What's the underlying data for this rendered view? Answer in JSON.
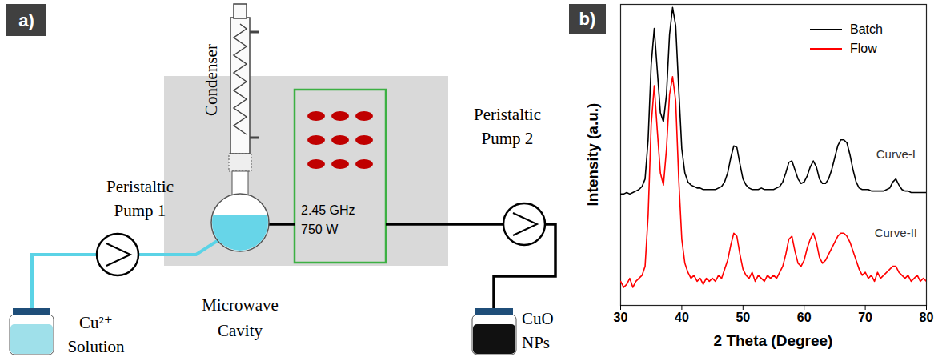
{
  "diagram": {
    "panel_label": "a)",
    "condenser": "Condenser",
    "pump_1": [
      "Peristaltic",
      "Pump 1"
    ],
    "pump_2": [
      "Peristaltic",
      "Pump 2"
    ],
    "source": [
      "Cu²⁺",
      "Solution"
    ],
    "cavity": [
      "Microwave",
      "Cavity"
    ],
    "microwave": [
      "2.45 GHz",
      "750 W"
    ],
    "product": [
      "CuO",
      "NPs"
    ]
  },
  "chart_data": {
    "type": "line",
    "panel_label": "b)",
    "xlabel": "2 Theta (Degree)",
    "ylabel": "Intensity (a.u.)",
    "x": [
      30,
      30.5,
      31,
      31.5,
      32,
      32.5,
      33,
      33.5,
      34,
      34.5,
      35,
      35.5,
      36,
      36.5,
      37,
      37.5,
      38,
      38.5,
      39,
      39.5,
      40,
      40.5,
      41,
      41.5,
      42,
      42.5,
      43,
      43.5,
      44,
      44.5,
      45,
      45.5,
      46,
      46.5,
      47,
      47.5,
      48,
      48.5,
      49,
      49.5,
      50,
      50.5,
      51,
      51.5,
      52,
      52.5,
      53,
      53.5,
      54,
      54.5,
      55,
      55.5,
      56,
      56.5,
      57,
      57.5,
      58,
      58.5,
      59,
      59.5,
      60,
      60.5,
      61,
      61.5,
      62,
      62.5,
      63,
      63.5,
      64,
      64.5,
      65,
      65.5,
      66,
      66.5,
      67,
      67.5,
      68,
      68.5,
      69,
      69.5,
      70,
      70.5,
      71,
      71.5,
      72,
      72.5,
      73,
      73.5,
      74,
      74.5,
      75,
      75.5,
      76,
      76.5,
      77,
      77.5,
      78,
      78.5,
      79,
      79.5,
      80
    ],
    "series": [
      {
        "name": "Batch",
        "color": "#000000",
        "values": [
          37,
          37,
          37.5,
          37,
          37.5,
          38,
          38.5,
          39.5,
          42,
          55,
          80,
          92,
          78,
          64,
          61,
          70,
          90,
          99,
          93,
          72,
          52,
          44,
          41,
          40,
          39.5,
          39,
          39,
          38.5,
          38.5,
          38.5,
          38.5,
          38.5,
          39,
          39.5,
          41,
          44,
          49,
          53,
          52.5,
          47,
          42,
          40,
          39,
          38.5,
          38.5,
          38.5,
          39,
          38.5,
          38.5,
          38.5,
          38.5,
          39,
          39.5,
          41,
          44,
          47.5,
          48,
          45,
          42,
          40.5,
          41,
          43,
          46,
          48,
          46,
          42,
          40.5,
          40.5,
          42,
          45,
          49,
          53,
          55,
          55,
          54,
          50,
          45,
          41,
          39,
          38.5,
          38.5,
          38.5,
          38,
          38,
          38,
          38,
          38,
          38.5,
          39,
          41,
          42,
          40,
          38.5,
          38,
          38,
          37.5,
          37.5,
          37.5,
          37.5,
          37.5,
          37.5
        ]
      },
      {
        "name": "Flow",
        "color": "#ff0000",
        "values": [
          8,
          6,
          7,
          9,
          6,
          8,
          9,
          10,
          13,
          30,
          60,
          73,
          58,
          44,
          40,
          52,
          70,
          76,
          68,
          42,
          22,
          14,
          11,
          9,
          10,
          8,
          9,
          7,
          9,
          8,
          9,
          8,
          10,
          9,
          12,
          15,
          20,
          24,
          23,
          17,
          12,
          10,
          9,
          11,
          8,
          10,
          9,
          8,
          10,
          9,
          10,
          9,
          11,
          13,
          17,
          22,
          23,
          18,
          14,
          13,
          15,
          19,
          22,
          24,
          21,
          16,
          14,
          15,
          17,
          19,
          21,
          23,
          24,
          24,
          23,
          21,
          18,
          15,
          12,
          10,
          11,
          9,
          10,
          8,
          11,
          9,
          10,
          11,
          12,
          13,
          13,
          11,
          10,
          9,
          10,
          8,
          9,
          10,
          8,
          9,
          8
        ]
      }
    ],
    "xlim": [
      30,
      80
    ],
    "ylim": [
      0,
      100
    ],
    "xticks": [
      30,
      40,
      50,
      60,
      70,
      80
    ],
    "yticks": [],
    "tick_labels": "x",
    "grid": false,
    "legend": "top-right",
    "annotations": [
      {
        "text": "Curve-I",
        "x": 75,
        "y": 50
      },
      {
        "text": "Curve-II",
        "x": 75,
        "y": 24
      }
    ]
  }
}
